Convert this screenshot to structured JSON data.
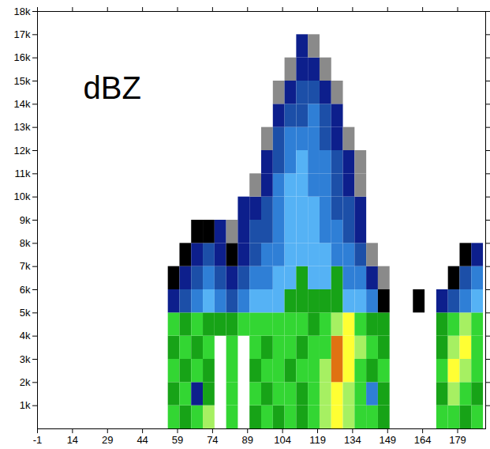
{
  "chart_data": {
    "type": "heatmap",
    "annotation": "dBZ",
    "xlim": [
      -1,
      191
    ],
    "xticks": [
      -1,
      14,
      29,
      44,
      59,
      74,
      89,
      104,
      119,
      134,
      149,
      164,
      179
    ],
    "ylim": [
      0,
      18
    ],
    "yticks": [
      {
        "value": 1,
        "label": "1k"
      },
      {
        "value": 2,
        "label": "2k"
      },
      {
        "value": 3,
        "label": "3k"
      },
      {
        "value": 4,
        "label": "4k"
      },
      {
        "value": 5,
        "label": "5k"
      },
      {
        "value": 6,
        "label": "6k"
      },
      {
        "value": 7,
        "label": "7k"
      },
      {
        "value": 8,
        "label": "8k"
      },
      {
        "value": 9,
        "label": "9k"
      },
      {
        "value": 10,
        "label": "10k"
      },
      {
        "value": 11,
        "label": "11k"
      },
      {
        "value": 12,
        "label": "12k"
      },
      {
        "value": 13,
        "label": "13k"
      },
      {
        "value": 14,
        "label": "14k"
      },
      {
        "value": 15,
        "label": "15k"
      },
      {
        "value": 16,
        "label": "16k"
      },
      {
        "value": 17,
        "label": "17k"
      },
      {
        "value": 18,
        "label": "18k"
      }
    ],
    "color_levels": [
      5,
      10,
      15,
      20,
      25,
      30,
      35,
      40,
      45,
      50
    ],
    "colors": [
      "#000000",
      "#8a8a8a",
      "#0d1f8c",
      "#1c4fa8",
      "#2f7fd6",
      "#55b2f5",
      "#17a317",
      "#33d633",
      "#a6f062",
      "#ffff33",
      "#e07212"
    ],
    "x_edges": [
      55,
      60,
      65,
      70,
      75,
      80,
      85,
      90,
      95,
      100,
      105,
      110,
      115,
      120,
      125,
      130,
      135,
      140,
      145,
      150,
      155,
      160,
      165,
      170,
      175,
      180,
      185,
      190
    ],
    "y_edges": [
      0,
      1,
      2,
      3,
      4,
      5,
      6,
      7,
      8,
      9,
      10,
      11,
      12,
      13,
      14,
      15,
      16,
      17
    ],
    "z": [
      [
        37,
        32,
        37,
        42,
        null,
        37,
        null,
        32,
        37,
        32,
        37,
        32,
        37,
        42,
        47,
        42,
        37,
        37,
        32,
        null,
        null,
        null,
        null,
        37,
        37,
        32,
        37
      ],
      [
        32,
        37,
        12,
        32,
        null,
        37,
        null,
        37,
        32,
        37,
        37,
        32,
        37,
        42,
        47,
        42,
        37,
        22,
        32,
        null,
        null,
        null,
        null,
        32,
        42,
        37,
        32
      ],
      [
        37,
        32,
        37,
        32,
        null,
        37,
        null,
        32,
        37,
        37,
        32,
        37,
        37,
        42,
        52,
        47,
        37,
        32,
        37,
        null,
        null,
        null,
        null,
        37,
        47,
        42,
        37
      ],
      [
        32,
        37,
        32,
        37,
        null,
        37,
        null,
        37,
        32,
        37,
        37,
        32,
        37,
        37,
        52,
        47,
        42,
        37,
        32,
        null,
        null,
        null,
        null,
        32,
        42,
        47,
        37
      ],
      [
        37,
        32,
        37,
        32,
        32,
        32,
        37,
        37,
        37,
        37,
        37,
        37,
        32,
        37,
        42,
        47,
        37,
        32,
        32,
        null,
        null,
        null,
        null,
        32,
        37,
        42,
        37
      ],
      [
        12,
        17,
        22,
        27,
        22,
        17,
        22,
        27,
        27,
        27,
        32,
        32,
        32,
        32,
        32,
        27,
        27,
        22,
        2,
        null,
        null,
        2,
        null,
        12,
        17,
        22,
        27
      ],
      [
        2,
        12,
        17,
        22,
        17,
        12,
        17,
        22,
        22,
        27,
        27,
        32,
        27,
        27,
        32,
        22,
        22,
        12,
        7,
        null,
        null,
        null,
        null,
        null,
        2,
        17,
        22
      ],
      [
        null,
        2,
        12,
        17,
        12,
        2,
        12,
        17,
        22,
        22,
        27,
        27,
        27,
        27,
        22,
        22,
        17,
        7,
        null,
        null,
        null,
        null,
        null,
        null,
        null,
        2,
        12
      ],
      [
        null,
        null,
        2,
        2,
        12,
        7,
        12,
        17,
        17,
        22,
        27,
        27,
        27,
        22,
        22,
        17,
        12,
        null,
        null,
        null,
        null,
        null,
        null,
        null,
        null,
        null,
        null
      ],
      [
        null,
        null,
        null,
        null,
        null,
        null,
        12,
        12,
        17,
        22,
        27,
        27,
        27,
        22,
        17,
        17,
        12,
        null,
        null,
        null,
        null,
        null,
        null,
        null,
        null,
        null,
        null
      ],
      [
        null,
        null,
        null,
        null,
        null,
        null,
        null,
        7,
        12,
        22,
        27,
        27,
        22,
        22,
        17,
        12,
        7,
        null,
        null,
        null,
        null,
        null,
        null,
        null,
        null,
        null,
        null
      ],
      [
        null,
        null,
        null,
        null,
        null,
        null,
        null,
        null,
        12,
        17,
        22,
        27,
        22,
        22,
        17,
        12,
        7,
        null,
        null,
        null,
        null,
        null,
        null,
        null,
        null,
        null,
        null
      ],
      [
        null,
        null,
        null,
        null,
        null,
        null,
        null,
        null,
        7,
        17,
        22,
        22,
        22,
        17,
        12,
        7,
        null,
        null,
        null,
        null,
        null,
        null,
        null,
        null,
        null,
        null,
        null
      ],
      [
        null,
        null,
        null,
        null,
        null,
        null,
        null,
        null,
        null,
        12,
        17,
        17,
        22,
        17,
        12,
        null,
        null,
        null,
        null,
        null,
        null,
        null,
        null,
        null,
        null,
        null,
        null
      ],
      [
        null,
        null,
        null,
        null,
        null,
        null,
        null,
        null,
        null,
        7,
        12,
        17,
        17,
        12,
        7,
        null,
        null,
        null,
        null,
        null,
        null,
        null,
        null,
        null,
        null,
        null,
        null
      ],
      [
        null,
        null,
        null,
        null,
        null,
        null,
        null,
        null,
        null,
        null,
        7,
        12,
        12,
        7,
        null,
        null,
        null,
        null,
        null,
        null,
        null,
        null,
        null,
        null,
        null,
        null,
        null
      ],
      [
        null,
        null,
        null,
        null,
        null,
        null,
        null,
        null,
        null,
        null,
        null,
        12,
        7,
        null,
        null,
        null,
        null,
        null,
        null,
        null,
        null,
        null,
        null,
        null,
        null,
        null,
        null
      ]
    ]
  }
}
